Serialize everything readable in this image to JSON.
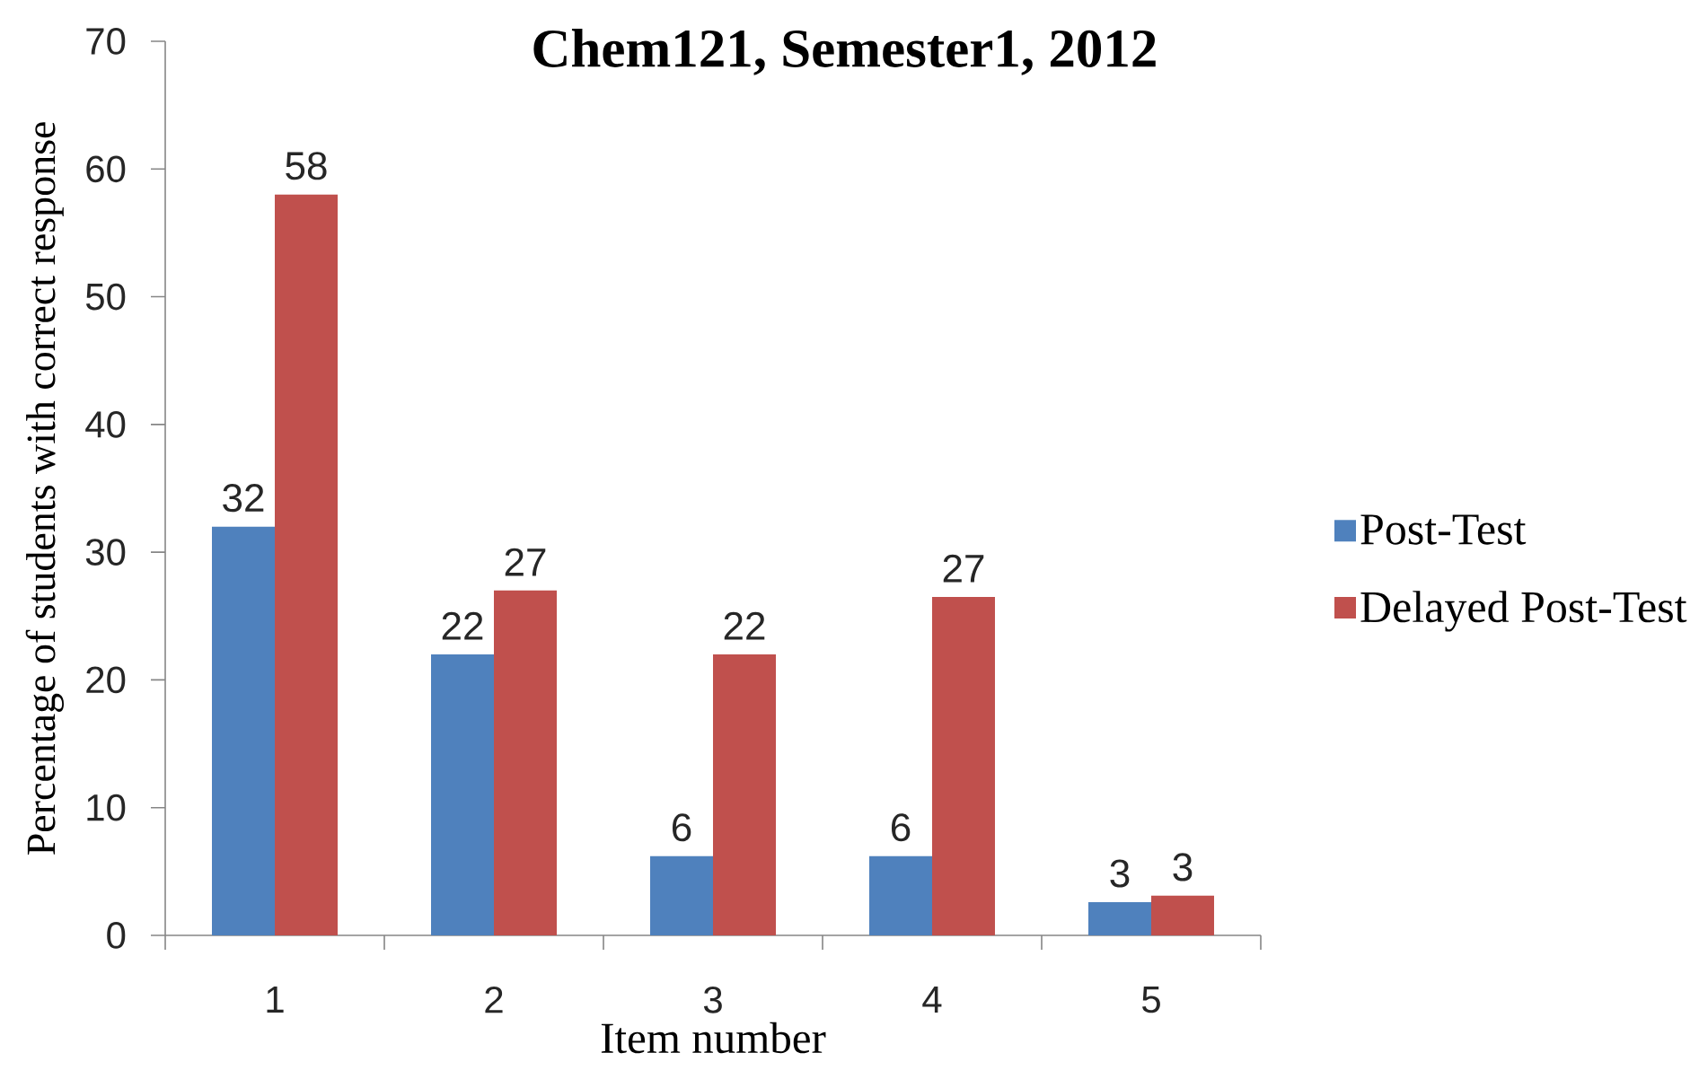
{
  "chart_data": {
    "type": "bar",
    "title": "Chem121, Semester1, 2012",
    "xlabel": "Item number",
    "ylabel": "Percentage of students with correct response",
    "categories": [
      "1",
      "2",
      "3",
      "4",
      "5"
    ],
    "series": [
      {
        "name": "Post-Test",
        "color": "#4f81bd",
        "values": [
          32,
          22,
          6.2,
          6.2,
          2.6
        ],
        "value_labels": [
          "32",
          "22",
          "6",
          "6",
          "3"
        ]
      },
      {
        "name": "Delayed Post-Test",
        "color": "#c0504d",
        "values": [
          58,
          27,
          22,
          26.5,
          3.1
        ],
        "value_labels": [
          "58",
          "27",
          "22",
          "27",
          "3"
        ]
      }
    ],
    "ylim": [
      0,
      70
    ],
    "yticks": [
      0,
      10,
      20,
      30,
      40,
      50,
      60,
      70
    ],
    "legend": "right"
  }
}
